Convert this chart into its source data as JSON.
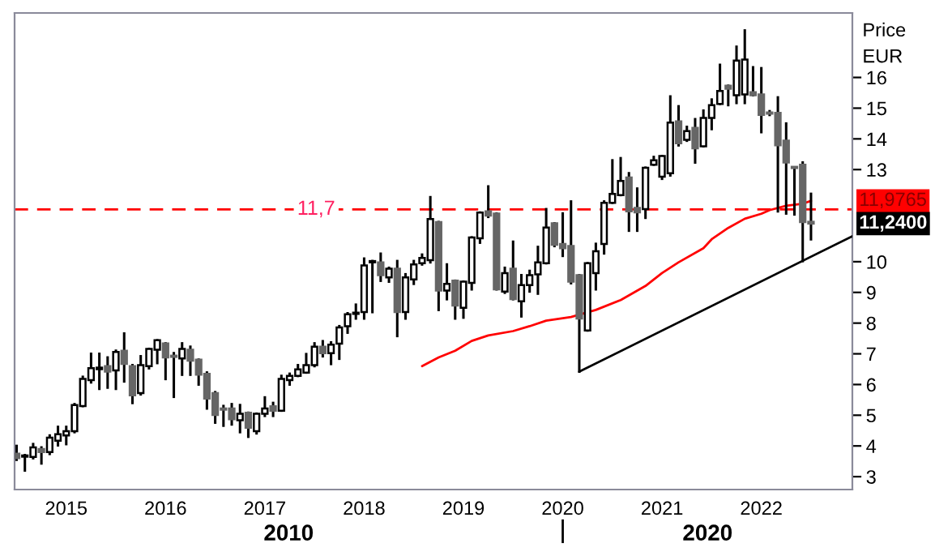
{
  "chart_data": {
    "type": "candlestick",
    "ylabel": "Price\nEUR",
    "x": [
      "2014-07",
      "2014-08",
      "2014-09",
      "2014-10",
      "2014-11",
      "2014-12",
      "2015-01",
      "2015-02",
      "2015-03",
      "2015-04",
      "2015-05",
      "2015-06",
      "2015-07",
      "2015-08",
      "2015-09",
      "2015-10",
      "2015-11",
      "2015-12",
      "2016-01",
      "2016-02",
      "2016-03",
      "2016-04",
      "2016-05",
      "2016-06",
      "2016-07",
      "2016-08",
      "2016-09",
      "2016-10",
      "2016-11",
      "2016-12",
      "2017-01",
      "2017-02",
      "2017-03",
      "2017-04",
      "2017-05",
      "2017-06",
      "2017-07",
      "2017-08",
      "2017-09",
      "2017-10",
      "2017-11",
      "2017-12",
      "2018-01",
      "2018-02",
      "2018-03",
      "2018-04",
      "2018-05",
      "2018-06",
      "2018-07",
      "2018-08",
      "2018-09",
      "2018-10",
      "2018-11",
      "2018-12",
      "2019-01",
      "2019-02",
      "2019-03",
      "2019-04",
      "2019-05",
      "2019-06",
      "2019-07",
      "2019-08",
      "2019-09",
      "2019-10",
      "2019-11",
      "2019-12",
      "2020-01",
      "2020-02",
      "2020-03",
      "2020-04",
      "2020-05",
      "2020-06",
      "2020-07",
      "2020-08",
      "2020-09",
      "2020-10",
      "2020-11",
      "2020-12",
      "2021-01",
      "2021-02",
      "2021-03",
      "2021-04",
      "2021-05",
      "2021-06",
      "2021-07",
      "2021-08",
      "2021-09",
      "2021-10",
      "2021-11",
      "2021-12",
      "2022-01",
      "2022-02",
      "2022-03",
      "2022-04",
      "2022-05",
      "2022-06",
      "2022-07"
    ],
    "ohlc": [
      [
        3.75,
        4.0,
        3.55,
        3.6
      ],
      [
        3.65,
        3.7,
        3.2,
        3.65
      ],
      [
        3.64,
        4.06,
        3.6,
        3.95
      ],
      [
        3.9,
        3.95,
        3.43,
        3.8
      ],
      [
        3.8,
        4.34,
        3.74,
        4.27
      ],
      [
        4.17,
        4.62,
        4.02,
        4.38
      ],
      [
        4.34,
        4.62,
        4.06,
        4.48
      ],
      [
        4.48,
        5.36,
        4.45,
        5.33
      ],
      [
        5.3,
        6.25,
        5.3,
        6.18
      ],
      [
        6.14,
        7.0,
        6.07,
        6.53
      ],
      [
        6.5,
        7.0,
        5.86,
        6.55
      ],
      [
        6.6,
        6.88,
        5.9,
        6.42
      ],
      [
        6.46,
        7.1,
        5.86,
        7.06
      ],
      [
        7.1,
        7.66,
        6.1,
        6.67
      ],
      [
        6.6,
        6.63,
        5.4,
        5.65
      ],
      [
        5.72,
        6.92,
        5.68,
        6.63
      ],
      [
        6.6,
        7.16,
        6.53,
        7.16
      ],
      [
        7.13,
        7.44,
        6.7,
        7.44
      ],
      [
        7.34,
        7.34,
        6.18,
        6.88
      ],
      [
        6.92,
        7.02,
        5.6,
        6.9
      ],
      [
        6.85,
        7.34,
        6.32,
        7.16
      ],
      [
        7.13,
        7.23,
        6.32,
        6.78
      ],
      [
        6.81,
        6.81,
        6.0,
        6.32
      ],
      [
        6.35,
        6.39,
        5.22,
        5.54
      ],
      [
        5.72,
        5.75,
        4.76,
        5.01
      ],
      [
        5.2,
        5.3,
        4.66,
        5.18
      ],
      [
        5.22,
        5.36,
        4.7,
        4.87
      ],
      [
        4.84,
        5.33,
        4.45,
        5.05
      ],
      [
        5.08,
        5.08,
        4.3,
        4.59
      ],
      [
        4.48,
        5.05,
        4.41,
        5.05
      ],
      [
        5.05,
        5.58,
        4.98,
        5.22
      ],
      [
        5.29,
        5.4,
        4.98,
        5.15
      ],
      [
        5.15,
        6.28,
        5.15,
        6.18
      ],
      [
        6.14,
        6.35,
        6.0,
        6.28
      ],
      [
        6.28,
        6.63,
        6.28,
        6.49
      ],
      [
        6.39,
        6.99,
        6.39,
        6.63
      ],
      [
        6.63,
        7.34,
        6.6,
        7.23
      ],
      [
        7.23,
        7.41,
        6.92,
        7.02
      ],
      [
        7.02,
        7.37,
        6.67,
        7.3
      ],
      [
        7.33,
        7.9,
        6.84,
        7.86
      ],
      [
        7.9,
        8.32,
        7.69,
        8.29
      ],
      [
        8.3,
        8.6,
        8.15,
        8.33
      ],
      [
        8.36,
        10.1,
        8.15,
        9.88
      ],
      [
        9.98,
        10.02,
        8.36,
        10.0
      ],
      [
        9.98,
        10.26,
        9.38,
        9.56
      ],
      [
        9.49,
        9.8,
        9.35,
        9.77
      ],
      [
        9.77,
        10.02,
        7.58,
        8.36
      ],
      [
        8.36,
        9.59,
        8.15,
        9.49
      ],
      [
        9.42,
        10.02,
        9.28,
        9.91
      ],
      [
        9.95,
        10.23,
        9.91,
        10.12
      ],
      [
        10.05,
        12.1,
        9.98,
        11.39
      ],
      [
        11.29,
        11.29,
        8.43,
        9.06
      ],
      [
        9.06,
        9.91,
        8.78,
        9.28
      ],
      [
        9.38,
        9.38,
        8.15,
        8.57
      ],
      [
        8.5,
        9.35,
        8.18,
        9.35
      ],
      [
        9.31,
        10.79,
        9.1,
        10.79
      ],
      [
        10.76,
        11.6,
        10.62,
        11.6
      ],
      [
        11.64,
        12.45,
        11.46,
        11.5
      ],
      [
        11.57,
        11.57,
        9.1,
        9.1
      ],
      [
        9.03,
        9.8,
        8.99,
        9.63
      ],
      [
        9.77,
        10.65,
        8.78,
        8.78
      ],
      [
        8.71,
        9.56,
        8.22,
        9.24
      ],
      [
        9.24,
        9.7,
        9.03,
        9.56
      ],
      [
        9.59,
        10.48,
        8.96,
        9.98
      ],
      [
        9.95,
        11.71,
        9.95,
        11.11
      ],
      [
        11.25,
        11.25,
        10.51,
        10.55
      ],
      [
        10.58,
        11.57,
        10.19,
        10.44
      ],
      [
        10.51,
        11.96,
        9.3,
        9.35
      ],
      [
        9.56,
        9.56,
        6.42,
        8.15
      ],
      [
        7.76,
        9.95,
        7.76,
        9.95
      ],
      [
        9.63,
        10.58,
        9.1,
        10.34
      ],
      [
        10.58,
        11.96,
        10.27,
        11.92
      ],
      [
        11.92,
        13.3,
        11.92,
        12.21
      ],
      [
        12.17,
        13.37,
        12.17,
        12.63
      ],
      [
        12.74,
        12.88,
        11.01,
        11.64
      ],
      [
        11.75,
        12.38,
        11.01,
        11.61
      ],
      [
        11.71,
        13.06,
        11.43,
        13.06
      ],
      [
        13.16,
        13.41,
        13.16,
        13.3
      ],
      [
        12.77,
        13.44,
        12.7,
        13.44
      ],
      [
        12.88,
        15.38,
        12.81,
        14.53
      ],
      [
        14.57,
        15.06,
        13.79,
        13.86
      ],
      [
        13.97,
        14.39,
        13.94,
        14.25
      ],
      [
        14.36,
        14.64,
        13.23,
        13.69
      ],
      [
        13.76,
        14.92,
        13.76,
        14.68
      ],
      [
        14.68,
        15.28,
        14.32,
        15.1
      ],
      [
        15.14,
        16.41,
        15.14,
        15.56
      ],
      [
        15.73,
        15.73,
        15.1,
        15.63
      ],
      [
        15.42,
        17.0,
        15.17,
        16.55
      ],
      [
        15.45,
        17.53,
        15.17,
        16.58
      ],
      [
        15.52,
        16.33,
        15.42,
        15.42
      ],
      [
        15.45,
        16.3,
        14.22,
        14.78
      ],
      [
        14.86,
        14.9,
        14.78,
        14.82
      ],
      [
        14.85,
        15.35,
        11.64,
        13.79
      ],
      [
        13.94,
        14.5,
        11.57,
        13.23
      ],
      [
        13.06,
        13.06,
        11.54,
        13.05
      ],
      [
        13.16,
        13.23,
        10.02,
        11.29
      ],
      [
        11.3,
        12.21,
        10.73,
        11.24
      ]
    ],
    "series": [
      {
        "type": "line",
        "color": "#ff0000",
        "x": [
          "2018-08",
          "2018-10",
          "2018-12",
          "2019-02",
          "2019-04",
          "2019-07",
          "2019-09",
          "2019-11",
          "2020-02",
          "2020-05",
          "2020-08",
          "2020-11",
          "2021-01",
          "2021-03",
          "2021-06",
          "2021-07",
          "2021-09",
          "2021-11",
          "2022-01",
          "2022-02",
          "2022-04",
          "2022-06",
          "2022-07"
        ],
        "values": [
          6.6,
          6.88,
          7.1,
          7.42,
          7.6,
          7.74,
          7.9,
          8.08,
          8.2,
          8.43,
          8.75,
          9.21,
          9.63,
          9.98,
          10.44,
          10.73,
          11.1,
          11.4,
          11.56,
          11.68,
          11.82,
          11.89,
          11.98
        ]
      },
      {
        "type": "line",
        "color": "#000000",
        "x": [
          "2020-03",
          "2022-12"
        ],
        "values": [
          6.42,
          10.83
        ]
      }
    ],
    "ref_lines": [
      {
        "axis": "y",
        "value": 11.7,
        "label": "11,7",
        "color": "#ff0000",
        "line_style": "dashed"
      }
    ],
    "annotations": [
      "11,9765",
      "11,2400",
      "2010",
      "2020"
    ],
    "xlim": [
      "2014-06-24",
      "2022-12-01"
    ],
    "xticks": [
      {
        "value": "2015",
        "label": "2015"
      },
      {
        "value": "2016",
        "label": "2016"
      },
      {
        "value": "2017",
        "label": "2017"
      },
      {
        "value": "2018",
        "label": "2018"
      },
      {
        "value": "2019",
        "label": "2019"
      },
      {
        "value": "2020",
        "label": "2020"
      },
      {
        "value": "2021",
        "label": "2021"
      },
      {
        "value": "2022",
        "label": "2022"
      }
    ],
    "ylim": [
      2.58,
      18.1
    ],
    "yticks": [
      3,
      4,
      5,
      6,
      7,
      8,
      9,
      10,
      13,
      14,
      15,
      16
    ],
    "grid": false,
    "legend": false
  }
}
